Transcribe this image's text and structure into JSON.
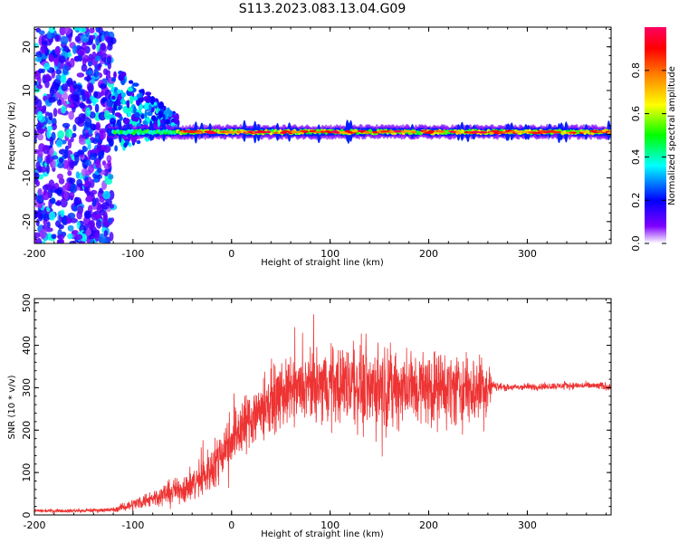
{
  "title": "S113.2023.083.13.04.G09",
  "chart_data": [
    {
      "type": "heatmap",
      "xlabel": "Height of straight line (km)",
      "ylabel": "Frequency (Hz)",
      "xlim": [
        -200,
        385
      ],
      "ylim": [
        -25,
        24.5
      ],
      "xticks": [
        -200,
        -100,
        0,
        100,
        200,
        300
      ],
      "yticks": [
        -20,
        -10,
        0,
        10,
        20
      ],
      "colorbar": {
        "label": "Normalized spectral amplitude",
        "ticks": [
          0.0,
          0.2,
          0.4,
          0.6,
          0.8
        ],
        "range": [
          0,
          1
        ],
        "colormap": [
          "#ffffff",
          "#7f00ff",
          "#0000ff",
          "#00ffff",
          "#00ff00",
          "#ffff00",
          "#ff7f00",
          "#ff0000",
          "#ff0060"
        ]
      },
      "features": {
        "noise_region_x": [
          -200,
          -120
        ],
        "transition_x": [
          -120,
          -55
        ],
        "carrier_x": [
          -55,
          385
        ],
        "carrier_freq_hz": 0.5,
        "carrier_amplitude": 1.0,
        "noise_amplitude": 0.35
      }
    },
    {
      "type": "line",
      "xlabel": "Height of straight line (km)",
      "ylabel": "SNR (10 * v/v)",
      "xlim": [
        -200,
        385
      ],
      "ylim": [
        0,
        510
      ],
      "xticks": [
        -200,
        -100,
        0,
        100,
        200,
        300
      ],
      "yticks": [
        0,
        100,
        200,
        300,
        400,
        500
      ],
      "color": "#ee3333",
      "series": [
        {
          "x": [
            -200,
            -150,
            -120,
            -100,
            -80,
            -60,
            -40,
            -20,
            0,
            20,
            40,
            60,
            80,
            100,
            120,
            140,
            160,
            180,
            200,
            220,
            240,
            260,
            265,
            280,
            300,
            320,
            340,
            360,
            385
          ],
          "y": [
            10,
            10,
            12,
            25,
            40,
            55,
            70,
            110,
            185,
            230,
            270,
            290,
            300,
            310,
            310,
            305,
            300,
            300,
            300,
            300,
            295,
            300,
            305,
            300,
            302,
            303,
            305,
            305,
            303
          ],
          "spread": [
            6,
            6,
            8,
            20,
            30,
            40,
            60,
            80,
            100,
            110,
            110,
            110,
            120,
            130,
            140,
            140,
            140,
            130,
            130,
            125,
            125,
            120,
            15,
            12,
            12,
            12,
            12,
            12,
            15
          ]
        }
      ]
    }
  ]
}
